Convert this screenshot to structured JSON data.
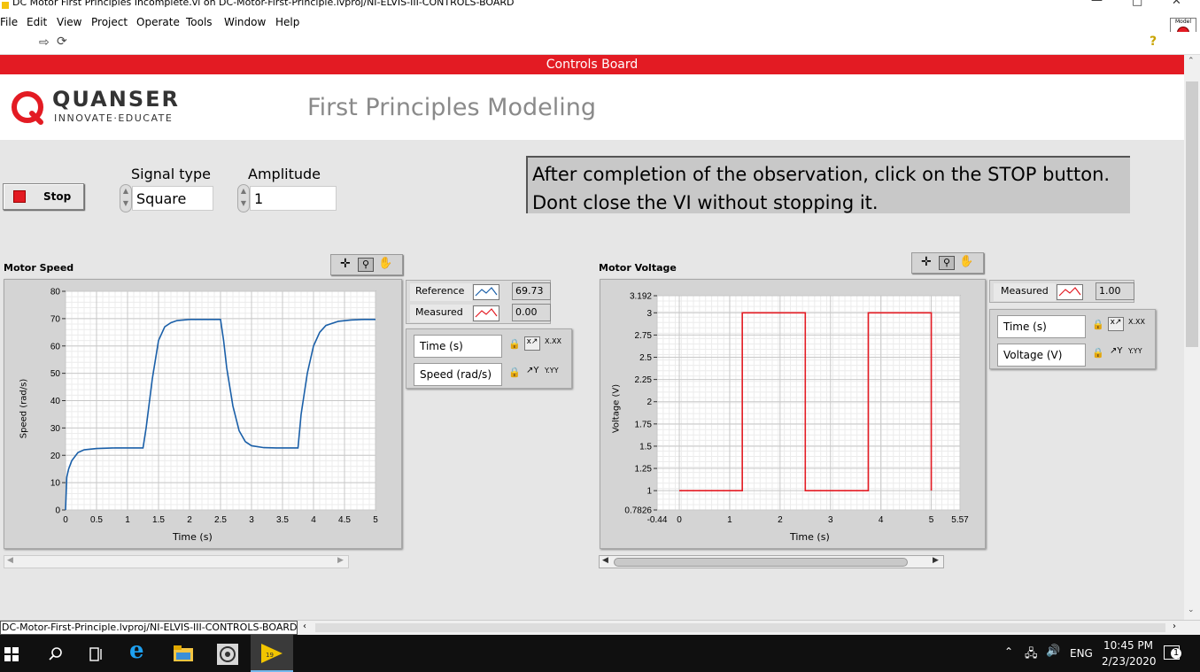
{
  "window": {
    "title": "DC Motor First Principles Incomplete.vi on DC-Motor-First-Principle.lvproj/NI-ELVIS-III-CONTROLS-BOARD"
  },
  "menu": [
    "File",
    "Edit",
    "View",
    "Project",
    "Operate",
    "Tools",
    "Window",
    "Help"
  ],
  "banner": {
    "title": "Controls Board"
  },
  "header": {
    "logo_name": "QUANSER",
    "logo_tagline": "INNOVATE·EDUCATE",
    "page_title": "First Principles Modeling"
  },
  "controls": {
    "stop_label": "Stop",
    "signal_type_label": "Signal type",
    "signal_type_value": "Square",
    "amplitude_label": "Amplitude",
    "amplitude_value": "1"
  },
  "instructions": {
    "line1": "After completion of the observation, click on the STOP button.",
    "line2": "Dont close the VI without stopping it."
  },
  "speed_graph": {
    "title": "Motor Speed",
    "legend": [
      {
        "name": "Reference",
        "value": "69.73",
        "color": "#1a5fa8"
      },
      {
        "name": "Measured",
        "value": "0.00",
        "color": "#e31b23"
      }
    ],
    "scales": {
      "x": "Time (s)",
      "y": "Speed (rad/s)"
    },
    "format_x": "X.XX",
    "format_y": "Y.YY"
  },
  "voltage_graph": {
    "title": "Motor Voltage",
    "legend": [
      {
        "name": "Measured",
        "value": "1.00",
        "color": "#e31b23"
      }
    ],
    "scales": {
      "x": "Time (s)",
      "y": "Voltage (V)"
    },
    "format_x": "X.XX",
    "format_y": "Y.YY"
  },
  "chart_data": [
    {
      "type": "line",
      "title": "Motor Speed",
      "xlabel": "Time (s)",
      "ylabel": "Speed (rad/s)",
      "xlim": [
        0,
        5
      ],
      "ylim": [
        0,
        80
      ],
      "x_ticks": [
        "0",
        "0.5",
        "1",
        "1.5",
        "2",
        "2.5",
        "3",
        "3.5",
        "4",
        "4.5",
        "5"
      ],
      "y_ticks": [
        "0",
        "10",
        "20",
        "30",
        "40",
        "50",
        "60",
        "70",
        "80"
      ],
      "grid": true,
      "series": [
        {
          "name": "Reference",
          "color": "#1a5fa8",
          "x": [
            0,
            0.02,
            0.05,
            0.1,
            0.2,
            0.3,
            0.5,
            0.8,
            1.0,
            1.25,
            1.3,
            1.4,
            1.5,
            1.6,
            1.7,
            1.8,
            2.0,
            2.2,
            2.5,
            2.55,
            2.6,
            2.7,
            2.8,
            2.9,
            3.0,
            3.2,
            3.4,
            3.75,
            3.8,
            3.9,
            4.0,
            4.1,
            4.2,
            4.4,
            4.6,
            4.8,
            5.0
          ],
          "y": [
            0,
            12,
            15,
            18,
            21,
            22,
            22.5,
            22.7,
            22.7,
            22.7,
            30,
            48,
            62,
            67,
            68.5,
            69.3,
            69.7,
            69.7,
            69.7,
            62,
            52,
            38,
            29,
            25,
            23.5,
            22.8,
            22.7,
            22.7,
            35,
            50,
            60,
            65,
            67.5,
            69,
            69.5,
            69.7,
            69.7
          ]
        }
      ]
    },
    {
      "type": "line",
      "title": "Motor Voltage",
      "xlabel": "Time (s)",
      "ylabel": "Voltage (V)",
      "xlim": [
        -0.44,
        5.57
      ],
      "ylim": [
        0.7826,
        3.192
      ],
      "x_ticks": [
        "-0.44",
        "0",
        "1",
        "2",
        "3",
        "4",
        "5",
        "5.57"
      ],
      "y_ticks": [
        "0.7826",
        "1",
        "1.25",
        "1.5",
        "1.75",
        "2",
        "2.25",
        "2.5",
        "2.75",
        "3",
        "3.192"
      ],
      "grid": true,
      "series": [
        {
          "name": "Measured",
          "color": "#e31b23",
          "x": [
            0,
            1.25,
            1.25,
            2.5,
            2.5,
            3.75,
            3.75,
            5.0,
            5.0
          ],
          "y": [
            1,
            1,
            3,
            3,
            1,
            1,
            3,
            3,
            1
          ]
        }
      ]
    }
  ],
  "statusbar": {
    "path": "DC-Motor-First-Principle.lvproj/NI-ELVIS-III-CONTROLS-BOARD"
  },
  "taskbar": {
    "language": "ENG",
    "time": "10:45 PM",
    "date": "2/23/2020",
    "notification_count": "1"
  }
}
